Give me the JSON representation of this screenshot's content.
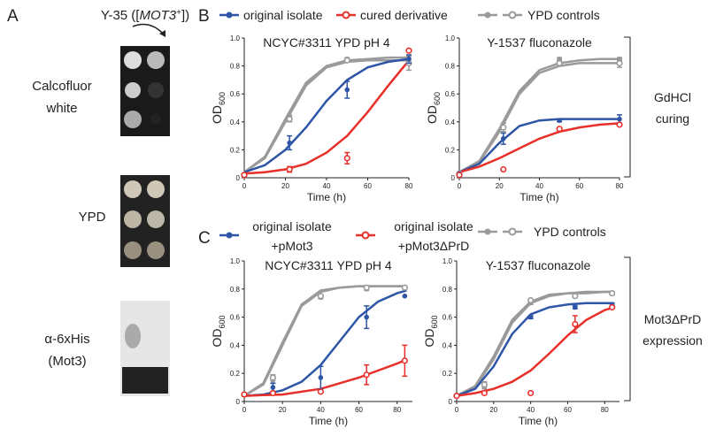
{
  "panel_a": {
    "label": "A",
    "strain": {
      "prefix": "Y-35 ([",
      "gene": "MOT3",
      "sup": "+",
      "suffix": "])"
    },
    "rows": [
      {
        "lines": [
          "Calcofluor",
          "white"
        ]
      },
      {
        "lines": [
          "YPD"
        ]
      },
      {
        "lines": [
          "α-6xHis",
          "(Mot3)"
        ]
      }
    ]
  },
  "panel_b": {
    "label": "B",
    "bracket": [
      "GdHCl",
      "curing"
    ],
    "legend": [
      {
        "lines": [
          "original isolate"
        ],
        "color": "#2e55a6",
        "markers": [
          "filled"
        ]
      },
      {
        "lines": [
          "cured derivative"
        ],
        "color": "#e8302a",
        "markers": [
          "open"
        ]
      },
      {
        "lines": [
          "YPD controls"
        ],
        "color": "#9a9a9a",
        "markers": [
          "filled",
          "open"
        ]
      }
    ]
  },
  "panel_c": {
    "label": "C",
    "bracket": [
      "Mot3ΔPrD",
      "expression"
    ],
    "legend": [
      {
        "lines": [
          "original isolate",
          "+pMot3"
        ],
        "color": "#2e55a6",
        "markers": [
          "filled"
        ]
      },
      {
        "lines": [
          "original isolate",
          "+pMot3ΔPrD"
        ],
        "color": "#e8302a",
        "markers": [
          "open"
        ]
      },
      {
        "lines": [
          "YPD controls"
        ],
        "color": "#9a9a9a",
        "markers": [
          "filled",
          "open"
        ]
      }
    ]
  },
  "chart_data": [
    {
      "type": "line",
      "title": "NCYC#3311 YPD pH 4",
      "x_label": "Time (h)",
      "y_label": "OD",
      "y_label_sub": "600",
      "xlim": [
        0,
        80
      ],
      "ylim": [
        0,
        1.0
      ],
      "xticks": [
        0,
        20,
        40,
        60,
        80
      ],
      "yticks": [
        0,
        0.2,
        0.4,
        0.6,
        0.8,
        {
          "value": 1.0,
          "label": "1.0"
        }
      ],
      "x": [
        0,
        22,
        50,
        80
      ],
      "fit_x": [
        0,
        10,
        20,
        30,
        40,
        50,
        60,
        70,
        80
      ],
      "series": [
        {
          "color": "#9a9a9a",
          "marker": "filled",
          "values": [
            0.02,
            0.43,
            0.85,
            0.85
          ],
          "errors": [
            0,
            0.02,
            0.01,
            0.02
          ],
          "fit": [
            0.04,
            0.15,
            0.42,
            0.68,
            0.8,
            0.84,
            0.85,
            0.86,
            0.86
          ]
        },
        {
          "color": "#9a9a9a",
          "marker": "open",
          "values": [
            0.02,
            0.42,
            0.84,
            0.82
          ],
          "errors": [
            0,
            0.02,
            0.01,
            0.05
          ],
          "fit": [
            0.04,
            0.14,
            0.4,
            0.66,
            0.79,
            0.83,
            0.84,
            0.84,
            0.84
          ]
        },
        {
          "color": "#2e55a6",
          "marker": "filled",
          "values": [
            0.02,
            0.25,
            0.63,
            0.85
          ],
          "errors": [
            0,
            0.05,
            0.06,
            0.03
          ],
          "fit": [
            0.04,
            0.09,
            0.2,
            0.36,
            0.55,
            0.7,
            0.79,
            0.83,
            0.85
          ]
        },
        {
          "color": "#e8302a",
          "marker": "open",
          "values": [
            0.02,
            0.06,
            0.14,
            0.91
          ],
          "errors": [
            0,
            0.02,
            0.04,
            0
          ],
          "fit": [
            0.03,
            0.04,
            0.06,
            0.1,
            0.18,
            0.3,
            0.47,
            0.66,
            0.84
          ]
        }
      ]
    },
    {
      "type": "line",
      "title": "Y-1537 fluconazole",
      "x_label": "Time (h)",
      "y_label": "OD",
      "y_label_sub": "600",
      "xlim": [
        0,
        80
      ],
      "ylim": [
        0,
        1.0
      ],
      "xticks": [
        0,
        20,
        40,
        60,
        80
      ],
      "yticks": [
        0,
        0.2,
        0.4,
        0.6,
        0.8,
        {
          "value": 1.0,
          "label": "1.0"
        }
      ],
      "x": [
        0,
        22,
        50,
        80
      ],
      "fit_x": [
        0,
        10,
        20,
        30,
        40,
        50,
        60,
        70,
        80
      ],
      "series": [
        {
          "color": "#9a9a9a",
          "marker": "filled",
          "values": [
            0.03,
            0.36,
            0.85,
            0.85
          ],
          "errors": [
            0,
            0.03,
            0.01,
            0.01
          ],
          "fit": [
            0.04,
            0.12,
            0.35,
            0.62,
            0.77,
            0.82,
            0.84,
            0.85,
            0.85
          ]
        },
        {
          "color": "#9a9a9a",
          "marker": "open",
          "values": [
            0.03,
            0.36,
            0.82,
            0.82
          ],
          "errors": [
            0,
            0.03,
            0.01,
            0.03
          ],
          "fit": [
            0.04,
            0.11,
            0.33,
            0.6,
            0.75,
            0.8,
            0.82,
            0.82,
            0.82
          ]
        },
        {
          "color": "#2e55a6",
          "marker": "filled",
          "values": [
            0.03,
            0.28,
            0.41,
            0.42
          ],
          "errors": [
            0,
            0.04,
            0.01,
            0.03
          ],
          "fit": [
            0.04,
            0.1,
            0.25,
            0.37,
            0.41,
            0.42,
            0.42,
            0.42,
            0.42
          ]
        },
        {
          "color": "#e8302a",
          "marker": "open",
          "values": [
            0.02,
            0.06,
            0.35,
            0.38
          ],
          "errors": [
            0,
            0,
            0.01,
            0
          ],
          "fit": [
            0.04,
            0.08,
            0.14,
            0.21,
            0.28,
            0.33,
            0.36,
            0.38,
            0.39
          ]
        }
      ]
    },
    {
      "type": "line",
      "title": "NCYC#3311 YPD pH 4",
      "x_label": "Time (h)",
      "y_label": "OD",
      "y_label_sub": "600",
      "xlim": [
        0,
        88
      ],
      "ylim": [
        0,
        1.0
      ],
      "xticks": [
        0,
        20,
        40,
        60,
        80
      ],
      "yticks": [
        0,
        0.2,
        0.4,
        0.6,
        0.8,
        {
          "value": 1.0,
          "label": "1.0"
        }
      ],
      "x": [
        0,
        15,
        40,
        64,
        84
      ],
      "fit_x": [
        0,
        10,
        20,
        30,
        40,
        50,
        60,
        70,
        80,
        85
      ],
      "series": [
        {
          "color": "#9a9a9a",
          "marker": "filled",
          "values": [
            0.05,
            0.15,
            0.74,
            0.8,
            0.81
          ],
          "errors": [
            0,
            0.02,
            0.01,
            0.01,
            0.01
          ],
          "fit": [
            0.04,
            0.12,
            0.4,
            0.68,
            0.78,
            0.81,
            0.82,
            0.82,
            0.82,
            0.82
          ]
        },
        {
          "color": "#9a9a9a",
          "marker": "open",
          "values": [
            0.05,
            0.17,
            0.75,
            0.81,
            0.81
          ],
          "errors": [
            0,
            0.02,
            0.01,
            0.01,
            0.01
          ],
          "fit": [
            0.04,
            0.13,
            0.42,
            0.69,
            0.79,
            0.81,
            0.82,
            0.82,
            0.82,
            0.82
          ]
        },
        {
          "color": "#2e55a6",
          "marker": "filled",
          "values": [
            0.05,
            0.1,
            0.17,
            0.6,
            0.75
          ],
          "errors": [
            0,
            0.03,
            0.08,
            0.08,
            0
          ],
          "fit": [
            0.04,
            0.05,
            0.08,
            0.14,
            0.26,
            0.43,
            0.6,
            0.71,
            0.77,
            0.79
          ]
        },
        {
          "color": "#e8302a",
          "marker": "open",
          "values": [
            0.05,
            0.06,
            0.07,
            0.19,
            0.29
          ],
          "errors": [
            0,
            0,
            0,
            0.07,
            0.11
          ],
          "fit": [
            0.04,
            0.045,
            0.05,
            0.07,
            0.09,
            0.13,
            0.17,
            0.22,
            0.27,
            0.3
          ]
        }
      ]
    },
    {
      "type": "line",
      "title": "Y-1537 fluconazole",
      "x_label": "Time (h)",
      "y_label": "OD",
      "y_label_sub": "600",
      "xlim": [
        0,
        88
      ],
      "ylim": [
        0,
        1.0
      ],
      "xticks": [
        0,
        20,
        40,
        60,
        80
      ],
      "yticks": [
        0,
        0.2,
        0.4,
        0.6,
        0.8,
        {
          "value": 1.0,
          "label": "1.0"
        }
      ],
      "x": [
        0,
        15,
        40,
        64,
        84
      ],
      "fit_x": [
        0,
        10,
        20,
        30,
        40,
        50,
        60,
        70,
        80,
        85
      ],
      "series": [
        {
          "color": "#9a9a9a",
          "marker": "filled",
          "values": [
            0.04,
            0.11,
            0.7,
            0.75,
            0.77
          ],
          "errors": [
            0,
            0.02,
            0.01,
            0.01,
            0.01
          ],
          "fit": [
            0.04,
            0.1,
            0.3,
            0.56,
            0.7,
            0.75,
            0.77,
            0.77,
            0.78,
            0.78
          ]
        },
        {
          "color": "#9a9a9a",
          "marker": "open",
          "values": [
            0.04,
            0.12,
            0.72,
            0.75,
            0.77
          ],
          "errors": [
            0,
            0.02,
            0.01,
            0.01,
            0.01
          ],
          "fit": [
            0.04,
            0.11,
            0.32,
            0.58,
            0.71,
            0.76,
            0.77,
            0.78,
            0.78,
            0.78
          ]
        },
        {
          "color": "#2e55a6",
          "marker": "filled",
          "values": [
            0.04,
            0.06,
            0.6,
            0.67,
            0.69
          ],
          "errors": [
            0,
            0,
            0.01,
            0.01,
            0.01
          ],
          "fit": [
            0.04,
            0.09,
            0.25,
            0.48,
            0.62,
            0.67,
            0.69,
            0.7,
            0.7,
            0.7
          ]
        },
        {
          "color": "#e8302a",
          "marker": "open",
          "values": [
            0.04,
            0.06,
            0.06,
            0.55,
            0.67
          ],
          "errors": [
            0,
            0,
            0,
            0.06,
            0
          ],
          "fit": [
            0.04,
            0.06,
            0.09,
            0.14,
            0.22,
            0.34,
            0.47,
            0.58,
            0.65,
            0.67
          ]
        }
      ]
    }
  ]
}
